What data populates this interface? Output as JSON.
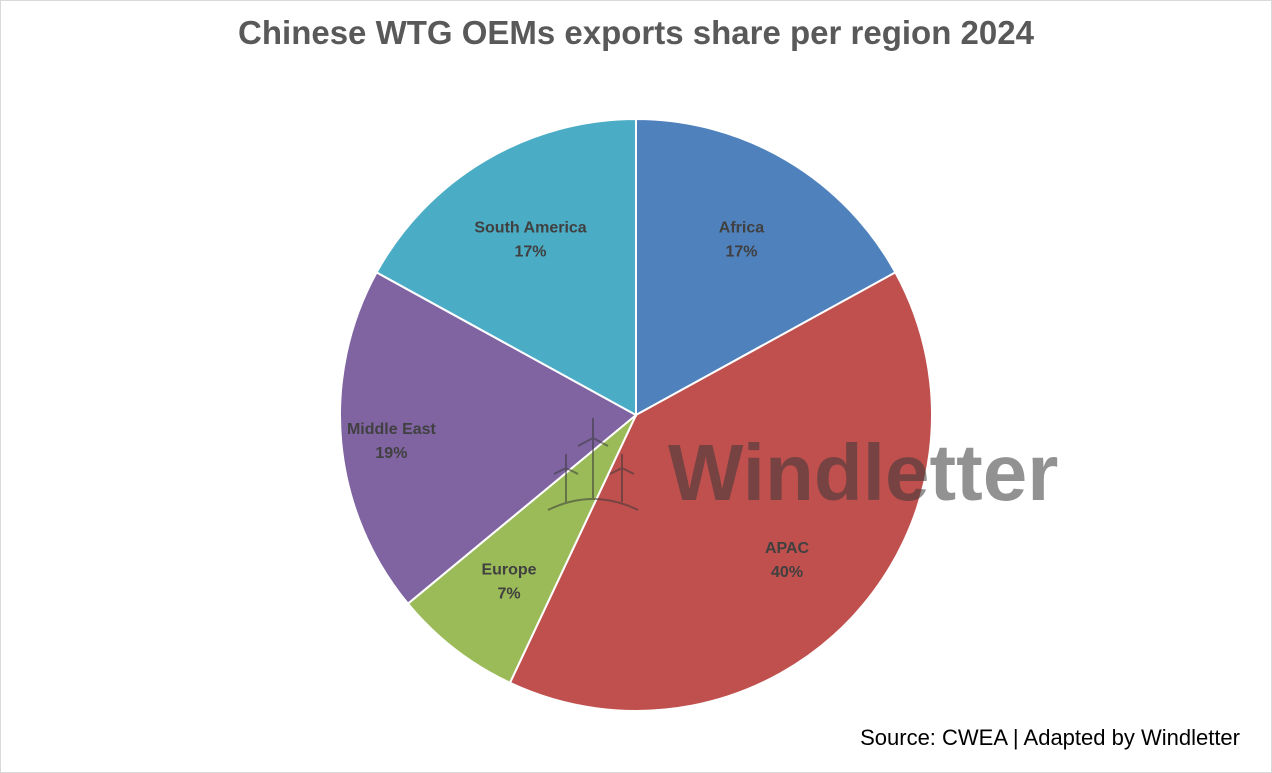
{
  "chart_data": {
    "type": "pie",
    "title": "Chinese WTG OEMs exports share per region 2024",
    "slices": [
      {
        "label": "Africa",
        "value": 17,
        "value_label": "17%",
        "color": "#4f81bd"
      },
      {
        "label": "APAC",
        "value": 40,
        "value_label": "40%",
        "color": "#c0504d"
      },
      {
        "label": "Europe",
        "value": 7,
        "value_label": "7%",
        "color": "#9bbb59"
      },
      {
        "label": "Middle East",
        "value": 19,
        "value_label": "19%",
        "color": "#8064a2"
      },
      {
        "label": "South America",
        "value": 17,
        "value_label": "17%",
        "color": "#4bacc6"
      }
    ],
    "start_angle_deg": 0,
    "direction": "clockwise",
    "legend": "none"
  },
  "watermark": {
    "text": "Windletter",
    "icon": "wind-turbines-icon"
  },
  "source": "Source: CWEA | Adapted by Windletter"
}
